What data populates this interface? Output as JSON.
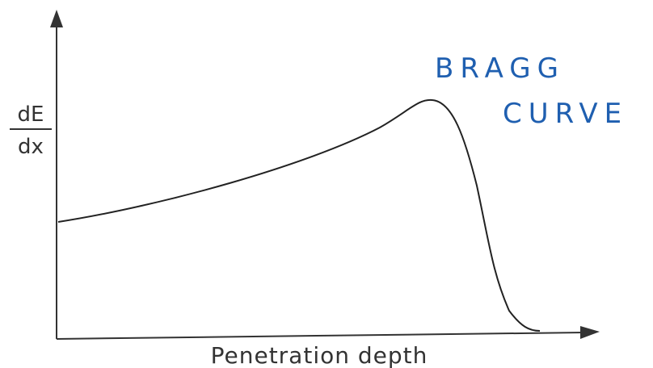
{
  "y_label": {
    "numerator": "dE",
    "denominator": "dx"
  },
  "x_label": "Penetration depth",
  "annotation": {
    "lines": [
      "BRAGG",
      "CURVE"
    ]
  }
}
